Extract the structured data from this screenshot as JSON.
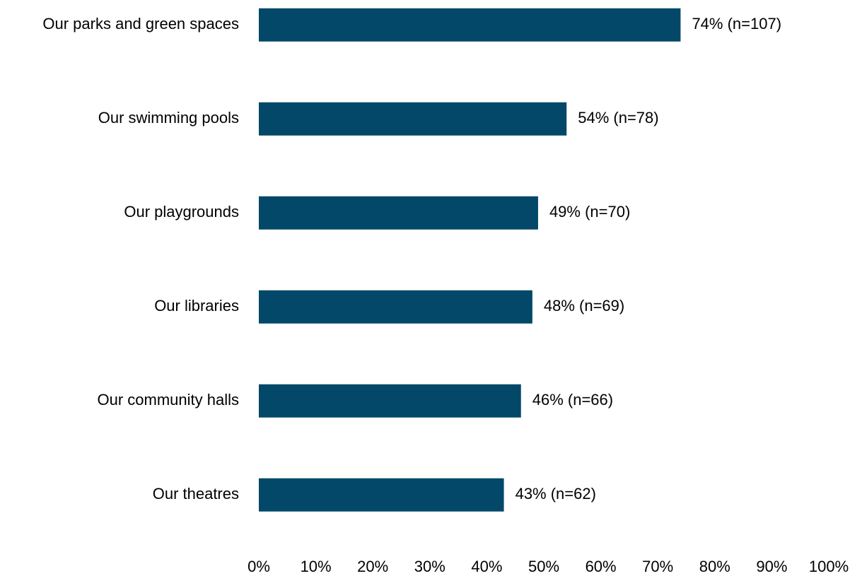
{
  "chart_data": {
    "type": "bar",
    "orientation": "horizontal",
    "categories": [
      "Our parks and green spaces",
      "Our swimming pools",
      "Our playgrounds",
      "Our libraries",
      "Our community halls",
      "Our theatres"
    ],
    "values": [
      74,
      54,
      49,
      48,
      46,
      43
    ],
    "value_labels": [
      "74% (n=107)",
      "54% (n=78)",
      "49% (n=70)",
      "48% (n=69)",
      "46% (n=66)",
      "43% (n=62)"
    ],
    "color": "#034869",
    "xlim": [
      0,
      100
    ],
    "xticks": [
      {
        "value": 0,
        "label": "0%"
      },
      {
        "value": 10,
        "label": "10%"
      },
      {
        "value": 20,
        "label": "20%"
      },
      {
        "value": 30,
        "label": "30%"
      },
      {
        "value": 40,
        "label": "40%"
      },
      {
        "value": 50,
        "label": "50%"
      },
      {
        "value": 60,
        "label": "60%"
      },
      {
        "value": 70,
        "label": "70%"
      },
      {
        "value": 80,
        "label": "80%"
      },
      {
        "value": 90,
        "label": "90%"
      },
      {
        "value": 100,
        "label": "100%"
      }
    ],
    "grid": false
  }
}
